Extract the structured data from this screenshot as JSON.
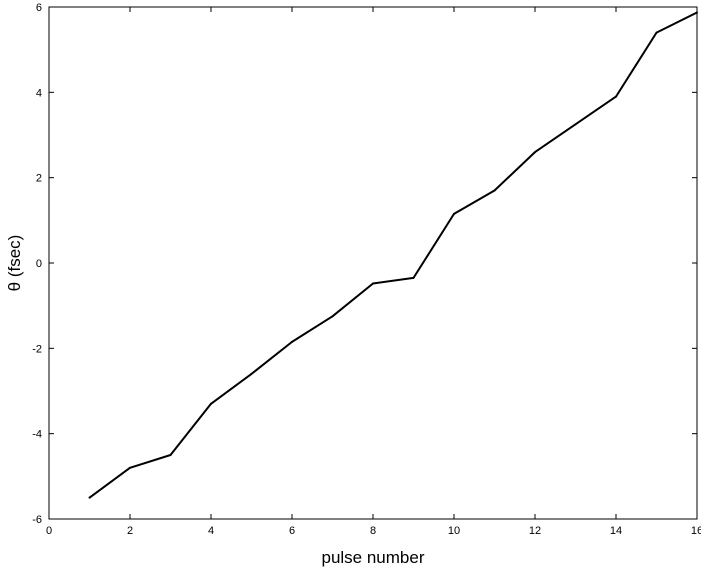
{
  "chart_data": {
    "type": "line",
    "title": "",
    "xlabel": "pulse number",
    "ylabel": "θ  (fsec)",
    "xlim": [
      0,
      16
    ],
    "ylim": [
      -6,
      6
    ],
    "xticks": [
      "0",
      "2",
      "4",
      "6",
      "8",
      "10",
      "12",
      "14",
      "16"
    ],
    "yticks": [
      "6",
      "4",
      "2",
      "0",
      "-2",
      "-4",
      "-6"
    ],
    "grid": false,
    "series": [
      {
        "x": [
          1,
          2,
          3,
          4,
          5,
          6,
          7,
          8,
          9,
          10,
          11,
          12,
          13,
          14,
          15,
          16
        ],
        "values": [
          -5.5,
          -4.8,
          -4.5,
          -3.3,
          -2.6,
          -1.85,
          -1.25,
          -0.48,
          -0.35,
          1.15,
          1.7,
          2.6,
          3.25,
          3.9,
          5.4,
          5.87
        ],
        "color": "#000000"
      }
    ]
  }
}
